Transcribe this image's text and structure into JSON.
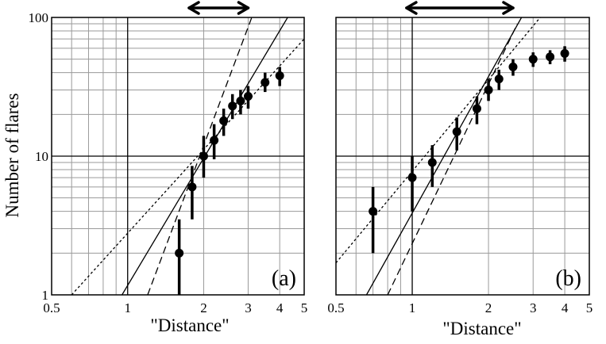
{
  "chart_data": [
    {
      "type": "scatter",
      "panel_label": "(a)",
      "xlabel": "\"Distance\"",
      "ylabel": "Number of flares",
      "xscale": "log",
      "yscale": "log",
      "xlim": [
        0.5,
        5
      ],
      "ylim": [
        1,
        100
      ],
      "x_ticks": [
        "0.5",
        "1",
        "2",
        "3",
        "4",
        "5"
      ],
      "y_ticks": [
        "1",
        "10",
        "100"
      ],
      "grid": true,
      "arrow_range": [
        1.75,
        3.0
      ],
      "points": [
        {
          "x": 1.6,
          "y": 2,
          "ylo": 1,
          "yhi": 3.5
        },
        {
          "x": 1.8,
          "y": 6,
          "ylo": 3.5,
          "yhi": 8.5
        },
        {
          "x": 2.0,
          "y": 10,
          "ylo": 7,
          "yhi": 14
        },
        {
          "x": 2.2,
          "y": 13,
          "ylo": 9.5,
          "yhi": 17
        },
        {
          "x": 2.4,
          "y": 18,
          "ylo": 14,
          "yhi": 22
        },
        {
          "x": 2.6,
          "y": 23,
          "ylo": 18.5,
          "yhi": 28
        },
        {
          "x": 2.8,
          "y": 25,
          "ylo": 20,
          "yhi": 30
        },
        {
          "x": 3.0,
          "y": 27,
          "ylo": 22,
          "yhi": 32
        },
        {
          "x": 3.5,
          "y": 34,
          "ylo": 29,
          "yhi": 40
        },
        {
          "x": 4.0,
          "y": 38,
          "ylo": 32,
          "yhi": 44
        }
      ],
      "fits": [
        {
          "style": "solid",
          "p1": [
            0.95,
            1
          ],
          "p2": [
            4.3,
            100
          ]
        },
        {
          "style": "dashed",
          "p1": [
            1.2,
            1
          ],
          "p2": [
            3.1,
            100
          ]
        },
        {
          "style": "dotted",
          "p1": [
            0.6,
            1
          ],
          "p2": [
            5.0,
            70
          ]
        }
      ]
    },
    {
      "type": "scatter",
      "panel_label": "(b)",
      "xlabel": "\"Distance\"",
      "ylabel": "",
      "xscale": "log",
      "yscale": "log",
      "xlim": [
        0.5,
        5
      ],
      "ylim": [
        1,
        100
      ],
      "x_ticks": [
        "0.5",
        "1",
        "2",
        "3",
        "4",
        "5"
      ],
      "y_ticks": [],
      "grid": true,
      "arrow_range": [
        0.95,
        2.5
      ],
      "points": [
        {
          "x": 0.7,
          "y": 4,
          "ylo": 2,
          "yhi": 6
        },
        {
          "x": 1.0,
          "y": 7,
          "ylo": 4,
          "yhi": 10
        },
        {
          "x": 1.2,
          "y": 9,
          "ylo": 6,
          "yhi": 12
        },
        {
          "x": 1.5,
          "y": 15,
          "ylo": 11,
          "yhi": 19
        },
        {
          "x": 1.8,
          "y": 22,
          "ylo": 17,
          "yhi": 27
        },
        {
          "x": 2.0,
          "y": 30,
          "ylo": 25,
          "yhi": 36
        },
        {
          "x": 2.2,
          "y": 36,
          "ylo": 30,
          "yhi": 42
        },
        {
          "x": 2.5,
          "y": 44,
          "ylo": 38,
          "yhi": 50
        },
        {
          "x": 3.0,
          "y": 50,
          "ylo": 44,
          "yhi": 56
        },
        {
          "x": 3.5,
          "y": 52,
          "ylo": 46,
          "yhi": 58
        },
        {
          "x": 4.0,
          "y": 55,
          "ylo": 48,
          "yhi": 62
        }
      ],
      "fits": [
        {
          "style": "solid",
          "p1": [
            0.66,
            1
          ],
          "p2": [
            2.7,
            100
          ]
        },
        {
          "style": "dashed",
          "p1": [
            0.8,
            1
          ],
          "p2": [
            2.6,
            90
          ]
        },
        {
          "style": "dotted",
          "p1": [
            0.5,
            1.7
          ],
          "p2": [
            3.2,
            100
          ]
        }
      ]
    }
  ]
}
